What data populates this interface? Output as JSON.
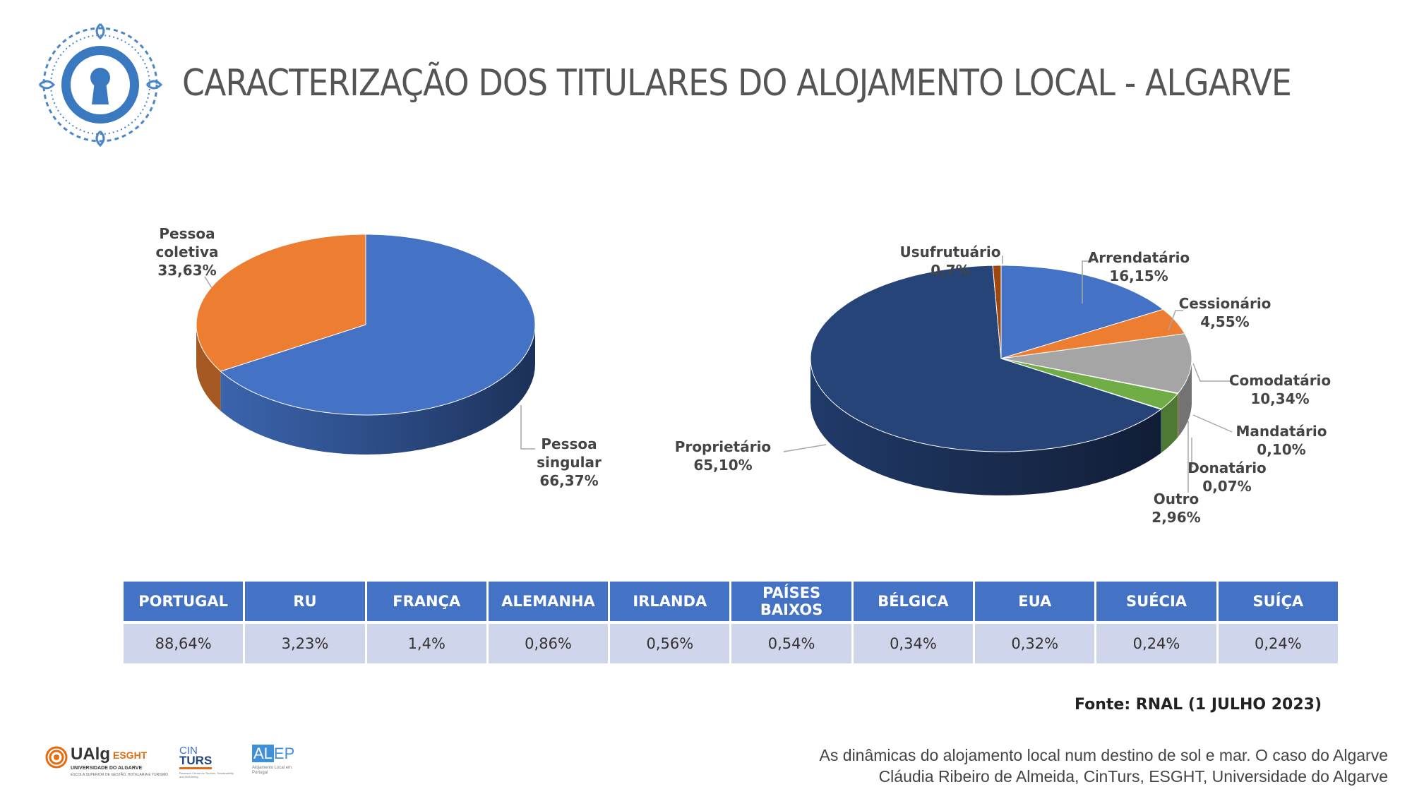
{
  "page": {
    "title": "CARACTERIZAÇÃO DOS TITULARES DO ALOJAMENTO LOCAL - ALGARVE",
    "source": "Fonte: RNAL (1 JULHO 2023)",
    "footer_line1": "As dinâmicas do alojamento local num destino de sol e mar. O caso do Algarve",
    "footer_line2": "Cláudia Ribeiro de Almeida, CinTurs, ESGHT, Universidade do Algarve"
  },
  "logos": {
    "ualg_name": "UAlg",
    "ualg_school": "ESGHT",
    "ualg_sub": "UNIVERSIDADE DO ALGARVE",
    "ualg_sub2": "ESCOLA SUPERIOR DE GESTÃO, HOTELARIA E TURISMO",
    "cin": "CIN",
    "turs": "TURS",
    "cinturs_sub": "Research Centre for Tourism, Sustainability and Well-being",
    "alep_a": "AL",
    "alep_b": "EP",
    "alep_sub": "Alojamento Local em Portugal"
  },
  "chart_data": [
    {
      "type": "pie",
      "style": "3d",
      "slices": [
        {
          "label": "Pessoa singular",
          "value": 66.37,
          "value_text": "66,37%",
          "color": "#4472c4"
        },
        {
          "label": "Pessoa coletiva",
          "value": 33.63,
          "value_text": "33,63%",
          "color": "#ed7d31"
        }
      ]
    },
    {
      "type": "pie",
      "style": "3d",
      "slices": [
        {
          "label": "Arrendatário",
          "value": 16.15,
          "value_text": "16,15%",
          "color": "#4472c4"
        },
        {
          "label": "Cessionário",
          "value": 4.55,
          "value_text": "4,55%",
          "color": "#ed7d31"
        },
        {
          "label": "Comodatário",
          "value": 10.34,
          "value_text": "10,34%",
          "color": "#a5a5a5"
        },
        {
          "label": "Mandatário",
          "value": 0.1,
          "value_text": "0,10%",
          "color": "#ffc000"
        },
        {
          "label": "Outro",
          "value": 2.96,
          "value_text": "2,96%",
          "color": "#70ad47"
        },
        {
          "label": "Donatário",
          "value": 0.07,
          "value_text": "0,07%",
          "color": "#5b9bd5"
        },
        {
          "label": "Proprietário",
          "value": 65.1,
          "value_text": "65,10%",
          "color": "#264478"
        },
        {
          "label": "Usufrutuário",
          "value": 0.7,
          "value_text": "0,7%",
          "color": "#9e480e"
        }
      ]
    },
    {
      "type": "table",
      "columns": [
        "PORTUGAL",
        "RU",
        "FRANÇA",
        "ALEMANHA",
        "IRLANDA",
        "PAÍSES BAIXOS",
        "BÉLGICA",
        "EUA",
        "SUÉCIA",
        "SUÍÇA"
      ],
      "values": [
        "88,64%",
        "3,23%",
        "1,4%",
        "0,86%",
        "0,56%",
        "0,54%",
        "0,34%",
        "0,32%",
        "0,24%",
        "0,24%"
      ]
    }
  ]
}
